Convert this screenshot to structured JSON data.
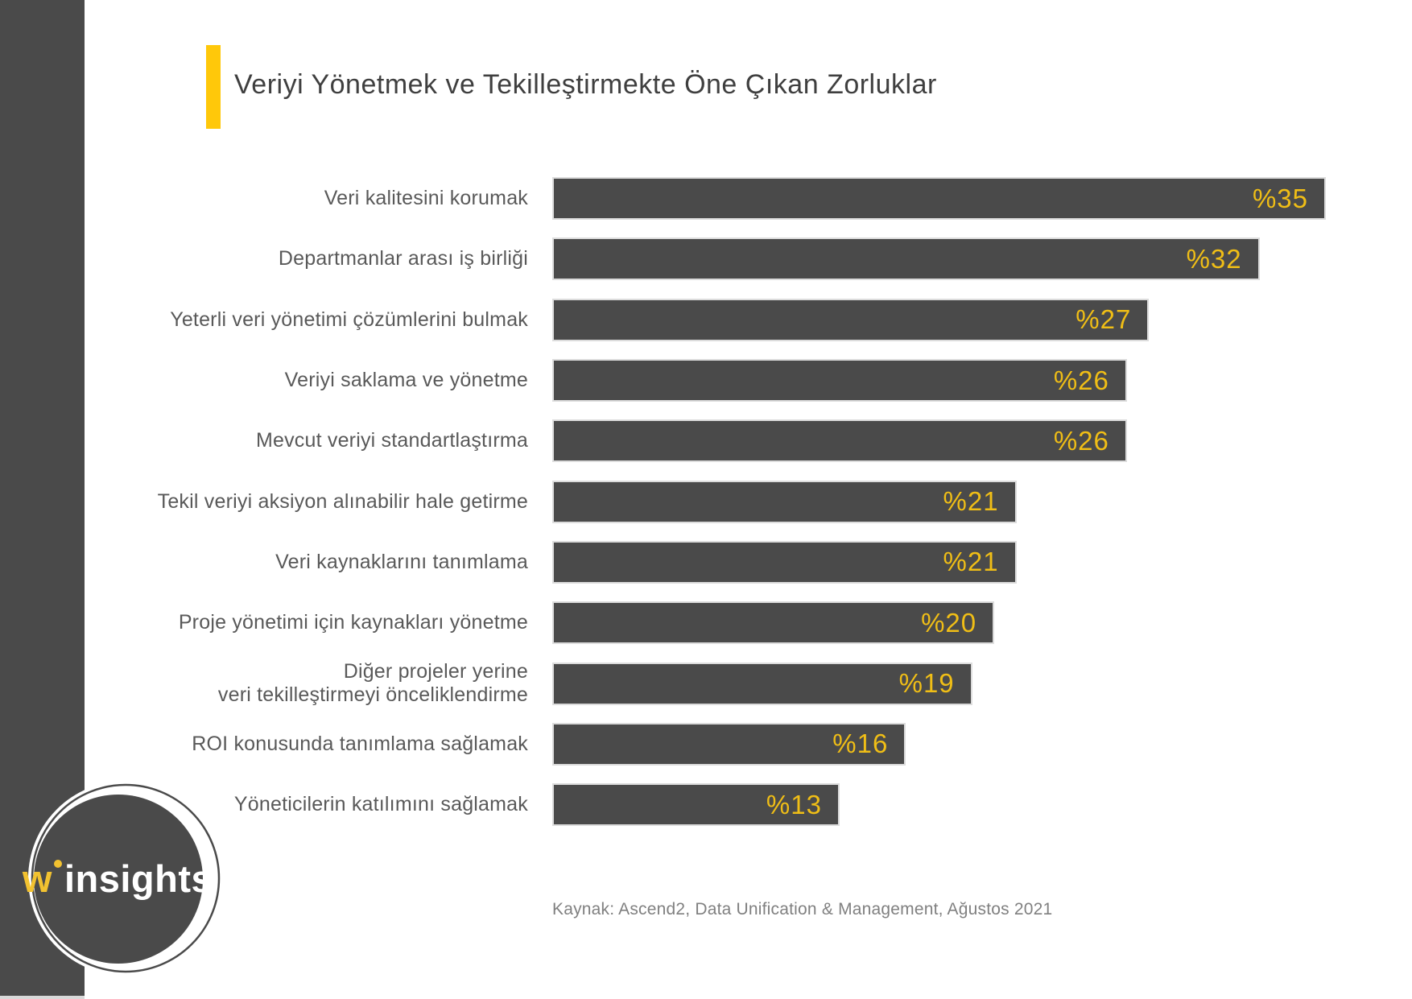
{
  "accent_color": "#ffc80a",
  "chart_data": {
    "type": "bar",
    "orientation": "horizontal",
    "title": "Veriyi Yönetmek ve Tekilleştirmekte Öne Çıkan Zorluklar",
    "categories": [
      "Veri kalitesini korumak",
      "Departmanlar arası iş birliği",
      "Yeterli veri yönetimi çözümlerini bulmak",
      "Veriyi saklama ve yönetme",
      "Mevcut veriyi standartlaştırma",
      "Tekil veriyi aksiyon alınabilir hale getirme",
      "Veri kaynaklarını tanımlama",
      "Proje yönetimi için kaynakları yönetme",
      "Diğer projeler yerine\nveri tekilleştirmeyi önceliklendirme",
      "ROI konusunda tanımlama sağlamak",
      "Yöneticilerin katılımını sağlamak"
    ],
    "values": [
      35,
      32,
      27,
      26,
      26,
      21,
      21,
      20,
      19,
      16,
      13
    ],
    "value_labels": [
      "%35",
      "%32",
      "%27",
      "%26",
      "%26",
      "%21",
      "%21",
      "%20",
      "%19",
      "%16",
      "%13"
    ],
    "xlim": [
      0,
      35
    ],
    "bar_color": "#4a4a4a",
    "value_label_color": "#f0be16",
    "grid": false,
    "legend": false,
    "source": "Kaynak: Ascend2, Data Unification & Management, Ağustos 2021"
  },
  "logo": {
    "w": "w",
    "insights": "insights"
  }
}
